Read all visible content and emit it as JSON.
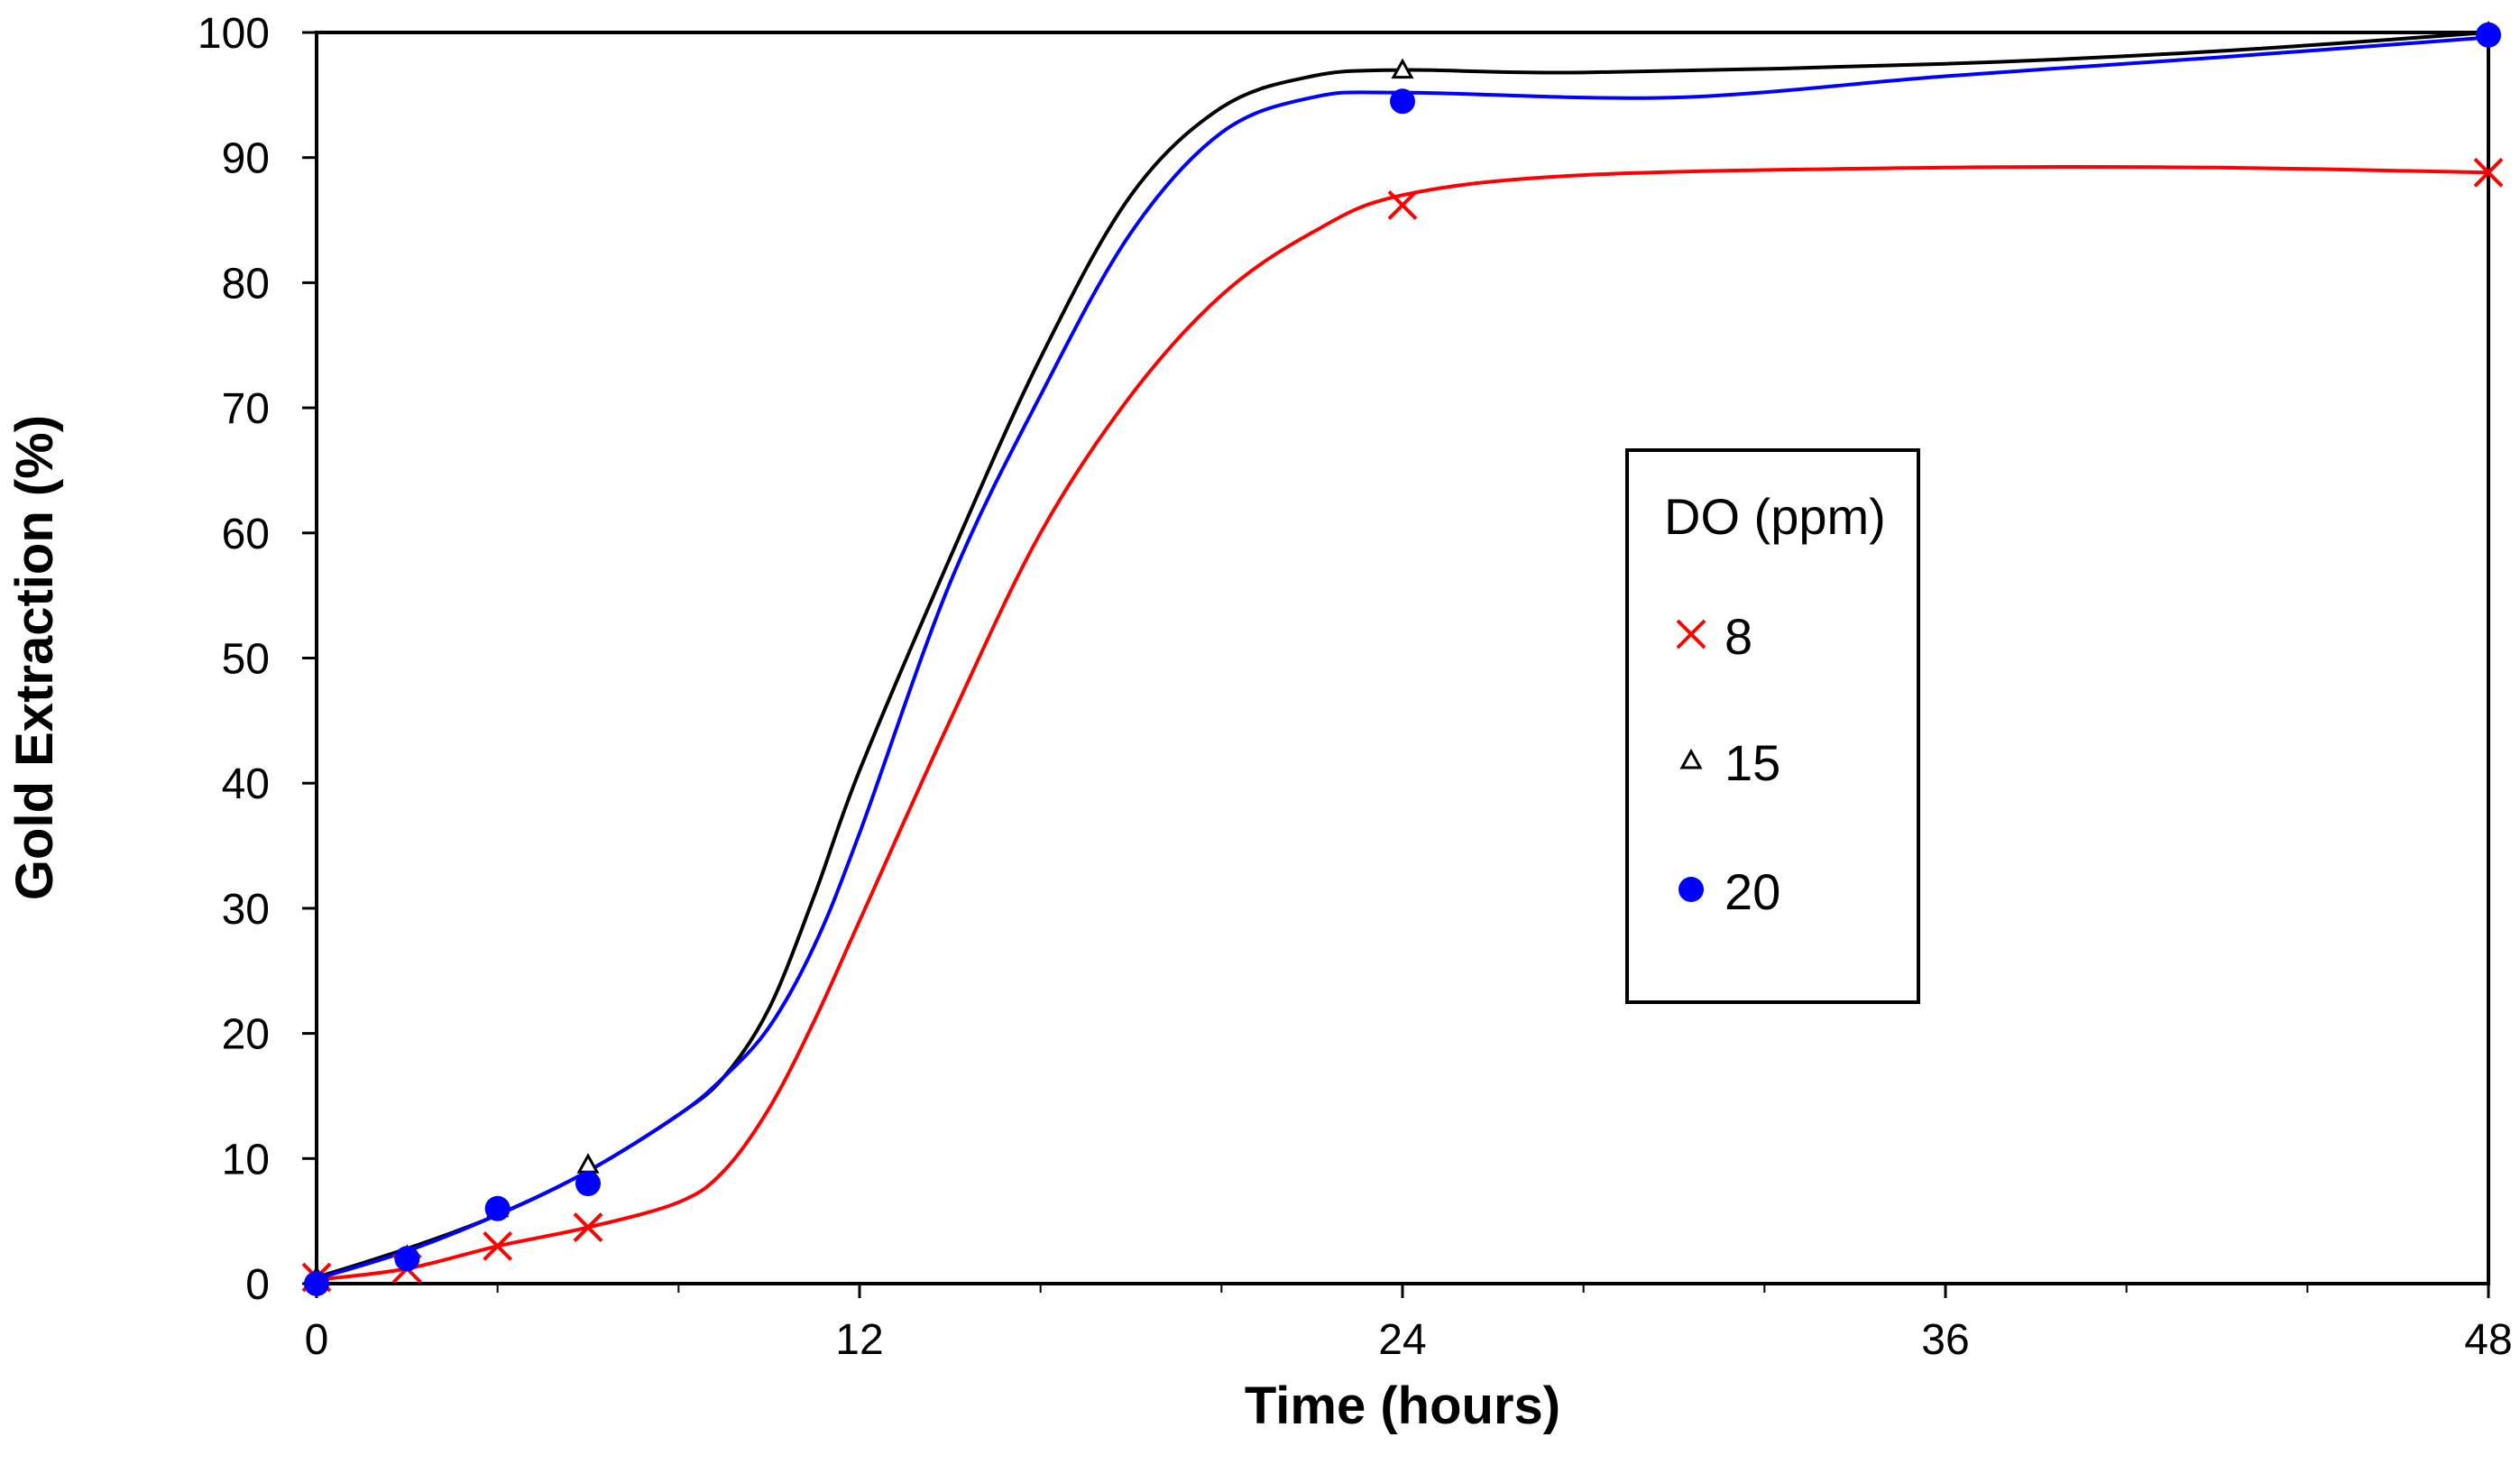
{
  "chart_data": {
    "type": "line",
    "xlabel": "Time (hours)",
    "ylabel": "Gold Extraction (%)",
    "xlim": [
      0,
      48
    ],
    "ylim": [
      0,
      100
    ],
    "xticks": [
      0,
      12,
      24,
      36,
      48
    ],
    "yticks": [
      0,
      10,
      20,
      30,
      40,
      50,
      60,
      70,
      80,
      90,
      100
    ],
    "grid": false,
    "legend": {
      "title": "DO (ppm)",
      "position": "right-center"
    },
    "series": [
      {
        "name": "8",
        "color": "#ff0000",
        "marker": "x",
        "points": [
          [
            0,
            0.5
          ],
          [
            2,
            1.2
          ],
          [
            4,
            3
          ],
          [
            6,
            4.5
          ],
          [
            24,
            86.2
          ],
          [
            48,
            88.8
          ]
        ],
        "curve": [
          [
            0,
            0.3
          ],
          [
            2,
            1.2
          ],
          [
            4,
            3
          ],
          [
            6,
            4.5
          ],
          [
            8,
            6.5
          ],
          [
            9,
            9
          ],
          [
            10,
            14
          ],
          [
            11,
            21
          ],
          [
            12,
            29
          ],
          [
            14,
            45
          ],
          [
            16,
            60
          ],
          [
            18,
            71
          ],
          [
            20,
            79
          ],
          [
            22,
            84
          ],
          [
            24,
            87
          ],
          [
            28,
            88.6
          ],
          [
            36,
            89.2
          ],
          [
            42,
            89.2
          ],
          [
            48,
            88.8
          ]
        ]
      },
      {
        "name": "15",
        "color": "#000000",
        "marker": "triangle",
        "points": [
          [
            0,
            0.5
          ],
          [
            2,
            2.2
          ],
          [
            4,
            6
          ],
          [
            6,
            9.5
          ],
          [
            24,
            97
          ],
          [
            48,
            100
          ]
        ],
        "curve": [
          [
            0,
            0.5
          ],
          [
            2,
            2.8
          ],
          [
            4,
            5.5
          ],
          [
            6,
            9
          ],
          [
            8,
            13.5
          ],
          [
            9,
            16.5
          ],
          [
            10,
            22
          ],
          [
            11,
            31
          ],
          [
            12,
            41
          ],
          [
            14,
            58
          ],
          [
            16,
            74
          ],
          [
            18,
            87
          ],
          [
            20,
            94
          ],
          [
            22,
            96.5
          ],
          [
            24,
            97
          ],
          [
            28,
            96.8
          ],
          [
            36,
            97.5
          ],
          [
            42,
            98.5
          ],
          [
            48,
            100
          ]
        ]
      },
      {
        "name": "20",
        "color": "#0000ff",
        "marker": "circle",
        "points": [
          [
            0,
            0
          ],
          [
            2,
            2
          ],
          [
            4,
            6
          ],
          [
            6,
            8
          ],
          [
            24,
            94.5
          ],
          [
            48,
            99.8
          ]
        ],
        "curve": [
          [
            0,
            0.4
          ],
          [
            2,
            2.6
          ],
          [
            4,
            5.5
          ],
          [
            6,
            9
          ],
          [
            8,
            13.5
          ],
          [
            9,
            16.5
          ],
          [
            10,
            20.5
          ],
          [
            11,
            27
          ],
          [
            12,
            36
          ],
          [
            14,
            56
          ],
          [
            16,
            71
          ],
          [
            18,
            84
          ],
          [
            20,
            92
          ],
          [
            22,
            94.8
          ],
          [
            24,
            95.2
          ],
          [
            30,
            94.8
          ],
          [
            36,
            96.5
          ],
          [
            42,
            98
          ],
          [
            48,
            99.6
          ]
        ]
      }
    ]
  }
}
